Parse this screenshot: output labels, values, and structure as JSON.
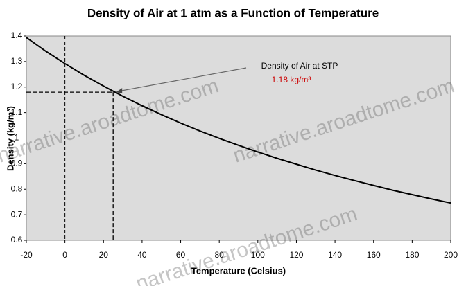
{
  "chart_data": {
    "type": "line",
    "title": "Density of Air at 1 atm as a Function of Temperature",
    "x_label": "Temperature (Celsius)",
    "y_label": "Density (kg/m³)",
    "x": [
      -20,
      -10,
      0,
      10,
      20,
      30,
      40,
      50,
      60,
      70,
      80,
      90,
      100,
      110,
      120,
      130,
      140,
      150,
      160,
      170,
      180,
      190,
      200
    ],
    "series": [
      {
        "name": "Density",
        "color": "#000000",
        "values": [
          1.394,
          1.341,
          1.292,
          1.246,
          1.204,
          1.164,
          1.127,
          1.092,
          1.059,
          1.028,
          0.999,
          0.972,
          0.946,
          0.921,
          0.898,
          0.875,
          0.854,
          0.834,
          0.815,
          0.796,
          0.779,
          0.762,
          0.746
        ]
      }
    ],
    "xlim": [
      -20,
      200
    ],
    "xticks": [
      -20,
      0,
      20,
      40,
      60,
      80,
      100,
      120,
      140,
      160,
      180,
      200
    ],
    "ylim": [
      0.6,
      1.4
    ],
    "yticks": [
      1.4,
      1.3,
      1.2,
      1.1,
      1,
      0.9,
      0.8,
      0.7,
      0.6
    ],
    "annotation": {
      "text": "Density of Air at STP",
      "x": 25,
      "y": 1.18,
      "value_label": "1.18 kg/m³",
      "color": "#cc0000"
    },
    "plot_background": "#dcdcdc",
    "watermark": "narrative.aroadtome.com"
  }
}
